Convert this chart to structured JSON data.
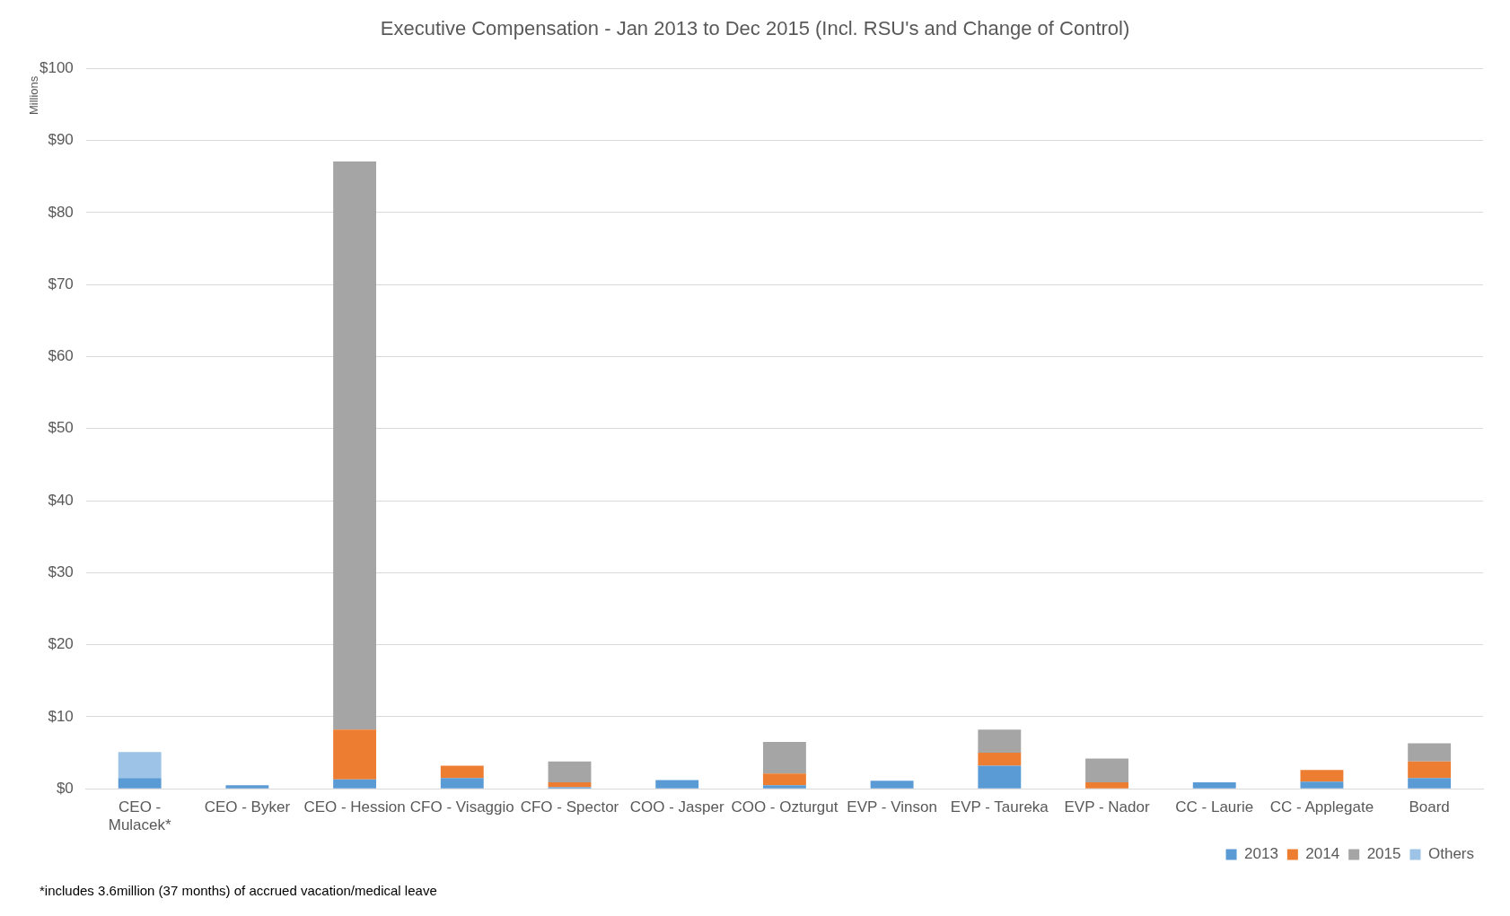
{
  "chart_data": {
    "type": "bar",
    "title": "Executive Compensation - Jan 2013 to Dec 2015 (Incl. RSU's and Change of Control)",
    "ylabel": "Millions",
    "categories": [
      "CEO - Mulacek*",
      "CEO - Byker",
      "CEO - Hession",
      "CFO - Visaggio",
      "CFO - Spector",
      "COO - Jasper",
      "COO - Ozturgut",
      "EVP - Vinson",
      "EVP - Taureka",
      "EVP - Nador",
      "CC - Laurie",
      "CC - Applegate",
      "Board"
    ],
    "stacked": true,
    "series": [
      {
        "name": "2013",
        "color": "#5b9bd5",
        "values": [
          1.5,
          0.5,
          1.3,
          1.5,
          0.2,
          1.2,
          0.5,
          1.1,
          3.2,
          null,
          0.9,
          1.0,
          1.5
        ]
      },
      {
        "name": "2014",
        "color": "#ed7d31",
        "values": [
          null,
          null,
          6.9,
          1.7,
          0.7,
          null,
          1.6,
          null,
          1.8,
          0.9,
          null,
          1.6,
          2.3
        ]
      },
      {
        "name": "2015",
        "color": "#a5a5a5",
        "values": [
          null,
          null,
          78.9,
          null,
          2.9,
          null,
          4.4,
          null,
          3.2,
          3.3,
          null,
          null,
          2.5
        ]
      },
      {
        "name": "Others",
        "color": "#9dc3e6",
        "values": [
          3.6,
          null,
          null,
          null,
          null,
          null,
          null,
          null,
          null,
          null,
          null,
          null,
          null
        ]
      }
    ],
    "ylim": [
      0,
      100
    ],
    "yticks": [
      {
        "value": 0,
        "label": "$0"
      },
      {
        "value": 10,
        "label": "$10"
      },
      {
        "value": 20,
        "label": "$20"
      },
      {
        "value": 30,
        "label": "$30"
      },
      {
        "value": 40,
        "label": "$40"
      },
      {
        "value": 50,
        "label": "$50"
      },
      {
        "value": 60,
        "label": "$60"
      },
      {
        "value": 70,
        "label": "$70"
      },
      {
        "value": 80,
        "label": "$80"
      },
      {
        "value": 90,
        "label": "$90"
      },
      {
        "value": 100,
        "label": "$100"
      }
    ],
    "grid": "y",
    "legend": "bottom right",
    "annotations": [
      "*includes 3.6million (37 months) of accrued vacation/medical leave"
    ]
  }
}
